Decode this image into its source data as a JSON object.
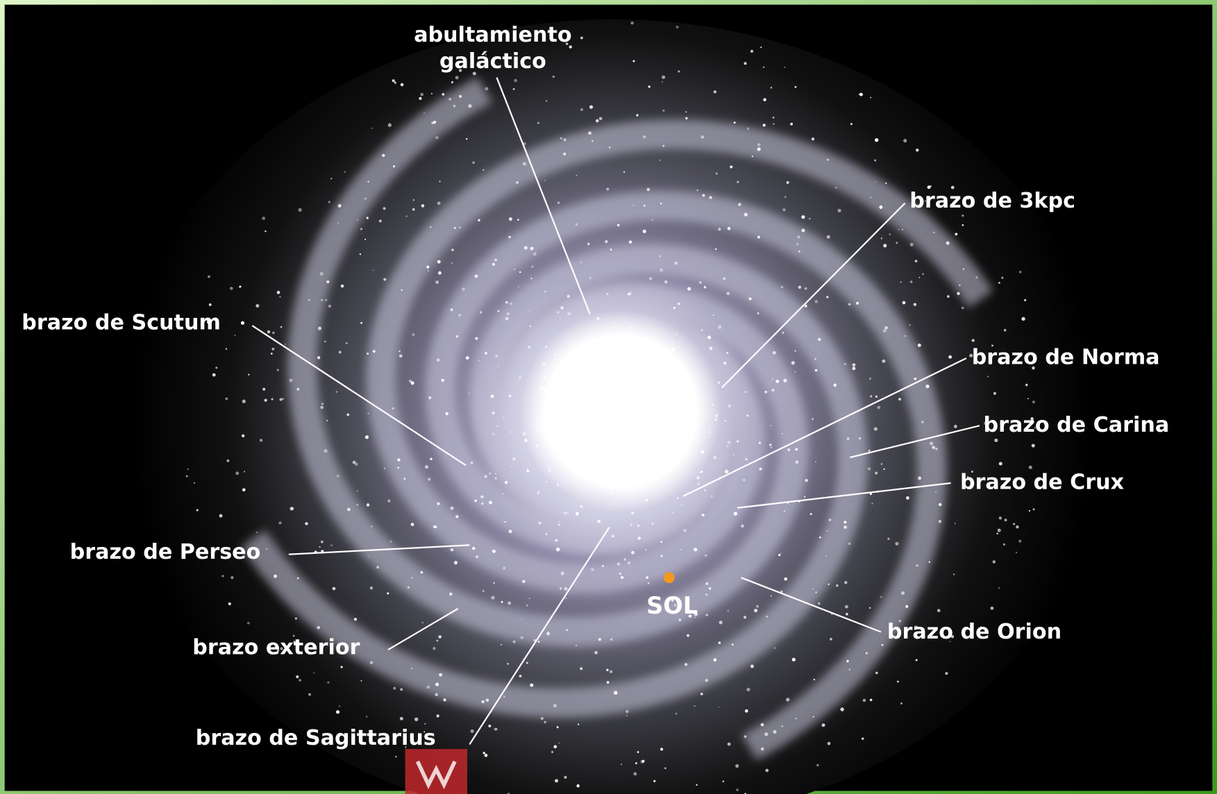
{
  "bulge": {
    "lines": [
      "abultamiento",
      "galáctico"
    ]
  },
  "sun": "SOL",
  "arms": [
    "brazo de 3kpc",
    "brazo de Scutum",
    "brazo de Norma",
    "brazo de Carina",
    "brazo de Crux",
    "brazo de Perseo",
    "brazo de Orion",
    "brazo exterior",
    "brazo de Sagittarius"
  ]
}
